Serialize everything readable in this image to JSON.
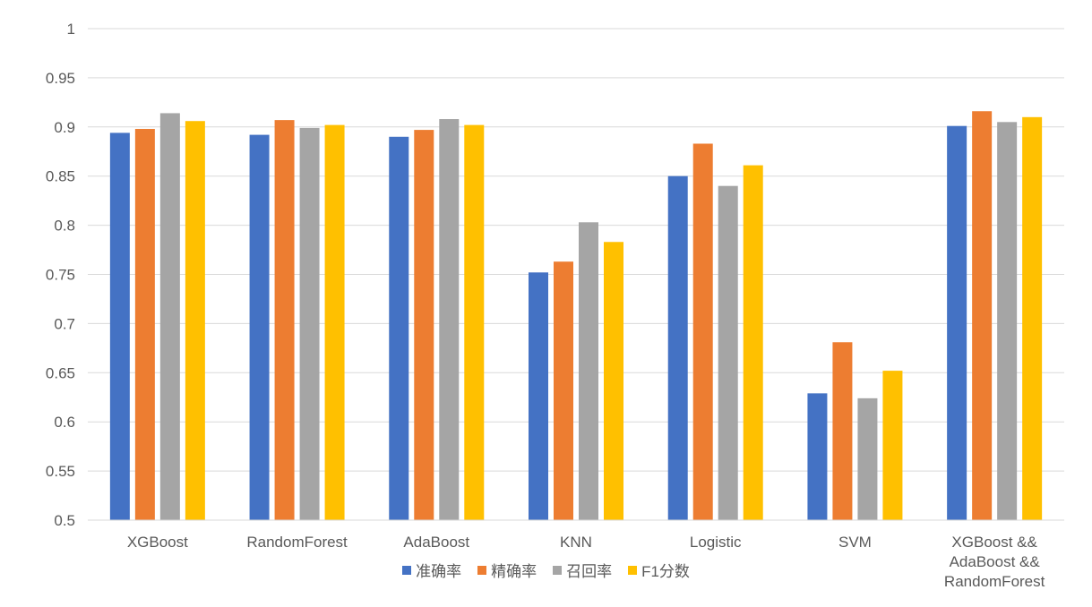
{
  "chart_data": {
    "type": "bar",
    "title": "",
    "xlabel": "",
    "ylabel": "",
    "ylim": [
      0.5,
      1
    ],
    "yticks": [
      "0.5",
      "0.55",
      "0.6",
      "0.65",
      "0.7",
      "0.75",
      "0.8",
      "0.85",
      "0.9",
      "0.95",
      "1"
    ],
    "categories": [
      [
        "XGBoost"
      ],
      [
        "RandomForest"
      ],
      [
        "AdaBoost"
      ],
      [
        "KNN"
      ],
      [
        "Logistic"
      ],
      [
        "SVM"
      ],
      [
        "XGBoost &&",
        "AdaBoost &&",
        "RandomForest"
      ]
    ],
    "series": [
      {
        "name": "准确率",
        "color": "#4472C4",
        "values": [
          0.894,
          0.892,
          0.89,
          0.752,
          0.85,
          0.629,
          0.901
        ]
      },
      {
        "name": "精确率",
        "color": "#ED7D31",
        "values": [
          0.898,
          0.907,
          0.897,
          0.763,
          0.883,
          0.681,
          0.916
        ]
      },
      {
        "name": "召回率",
        "color": "#A5A5A5",
        "values": [
          0.914,
          0.899,
          0.908,
          0.803,
          0.84,
          0.624,
          0.905
        ]
      },
      {
        "name": "F1分数",
        "color": "#FFC000",
        "values": [
          0.906,
          0.902,
          0.902,
          0.783,
          0.861,
          0.652,
          0.91
        ]
      }
    ],
    "grid": true,
    "legend_position": "bottom"
  }
}
